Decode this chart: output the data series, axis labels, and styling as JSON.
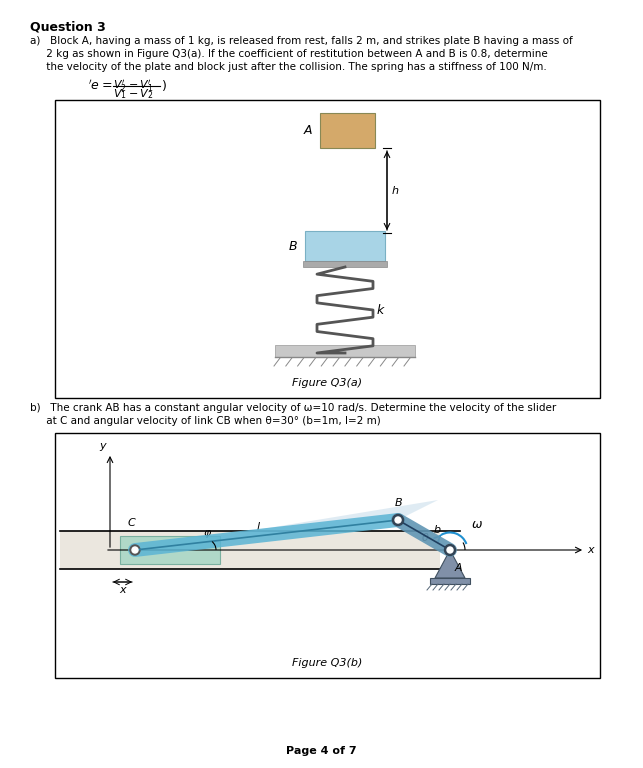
{
  "title": "Question 3",
  "part_a_text": "a)  Block A, having a mass of 1 kg, is released from rest, falls 2 m, and strikes plate B having a mass of\n    2 kg as shown in Figure Q3(a). If the coefficient of restitution between A and B is 0.8, determine\n    the velocity of the plate and block just after the collision. The spring has a stiffness of 100 N/m.",
  "formula": "'e = (V₂' − V₁') / (V₁ − V₂)",
  "figure_a_label": "Figure Q3(a)",
  "part_b_text": "b)  The crank AB has a constant angular velocity of ω=10 rad/s. Determine the velocity of the slider\n    at C and angular velocity of link CB when θ=30° (b=1m, l=2 m)",
  "figure_b_label": "Figure Q3(b)",
  "page_label": "Page 4 of 7",
  "bg_color": "#ffffff",
  "box_color": "#d4d4d4",
  "block_a_color": "#d4a96a",
  "plate_b_color": "#a8d4e6",
  "spring_color": "#555555",
  "floor_color": "#c8c8c8",
  "slider_color": "#b0d8c8",
  "link_color": "#5ab4d4",
  "crank_color": "#6096b4"
}
